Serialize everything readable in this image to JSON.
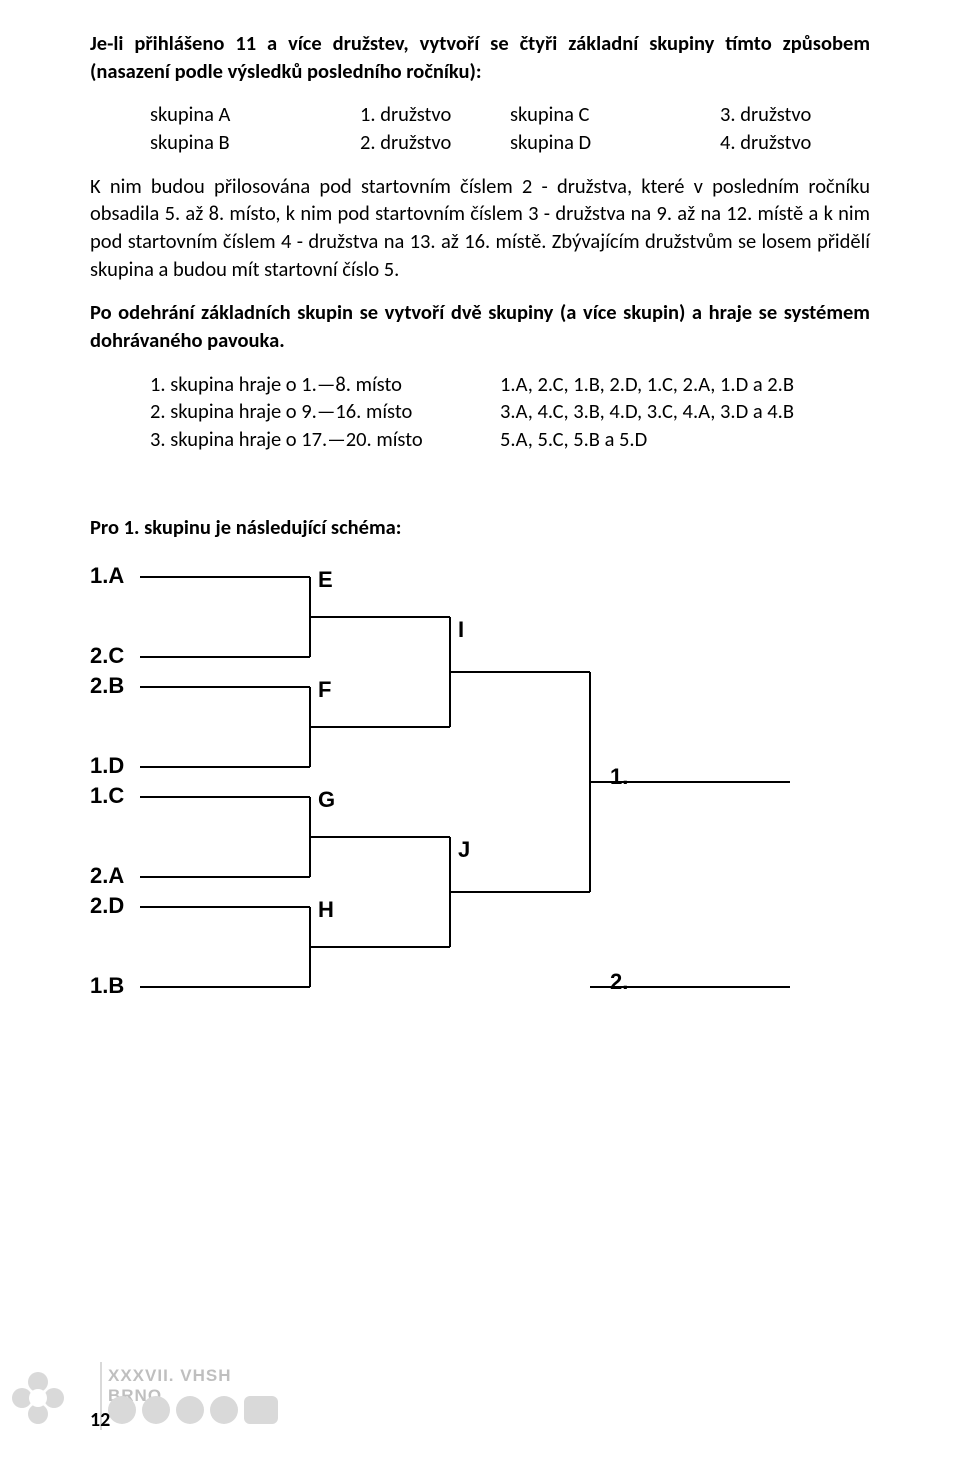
{
  "para1": "Je-li přihlášeno 11 a více družstev, vytvoří se čtyři základní skupiny tímto způsobem (nasazení podle výsledků posledního ročníku):",
  "groups": {
    "row1_l": "skupina A",
    "row1_m": "1. družstvo",
    "row1_r1": "skupina C",
    "row1_r2": "3. družstvo",
    "row2_l": "skupina B",
    "row2_m": "2. družstvo",
    "row2_r1": "skupina D",
    "row2_r2": "4. družstvo"
  },
  "para2": "K nim budou přilosována pod startovním číslem 2 - družstva, které v posledním ročníku obsadila 5. až 8. místo, k nim pod startovním číslem 3 - družstva na 9. až na 12. místě a k nim pod startovním číslem 4 - družstva na 13. až 16. místě. Zbývajícím družstvům se losem přidělí skupina a budou mít startovní číslo 5.",
  "para3": "Po odehrání základních skupin se vytvoří dvě skupiny (a více skupin) a hraje se systémem dohrávaného pavouka.",
  "list": {
    "r1c1": "1. skupina hraje o 1.—8. místo",
    "r1c2": "1.A, 2.C, 1.B, 2.D, 1.C, 2.A, 1.D a 2.B",
    "r2c1": "2. skupina hraje o 9.—16. místo",
    "r2c2": "3.A, 4.C, 3.B, 4.D, 3.C, 4.A, 3.D a 4.B",
    "r3c1": "3. skupina hraje o 17.—20. místo",
    "r3c2": "5.A, 5.C, 5.B a 5.D"
  },
  "schemaTitle": "Pro 1. skupinu je následující schéma:",
  "bracket": {
    "seeds": [
      "1.A",
      "2.C",
      "2.B",
      "1.D",
      "1.C",
      "2.A",
      "2.D",
      "1.B"
    ],
    "r1": [
      "E",
      "F",
      "G",
      "H"
    ],
    "r2": [
      "I",
      "J"
    ],
    "final": [
      "1.",
      "2."
    ],
    "lineColor": "#000000",
    "lineWidth": 2,
    "xSeedLabel": 0,
    "xSeedLine0": 50,
    "xSeedLine1": 220,
    "xR1Line1": 360,
    "xR2Line1": 500,
    "xFinalLine1": 700,
    "seedYs": [
      20,
      100,
      130,
      210,
      240,
      320,
      350,
      430
    ]
  },
  "footerTitle": "XXXVII. VHSH BRNO",
  "pageNumber": "12"
}
